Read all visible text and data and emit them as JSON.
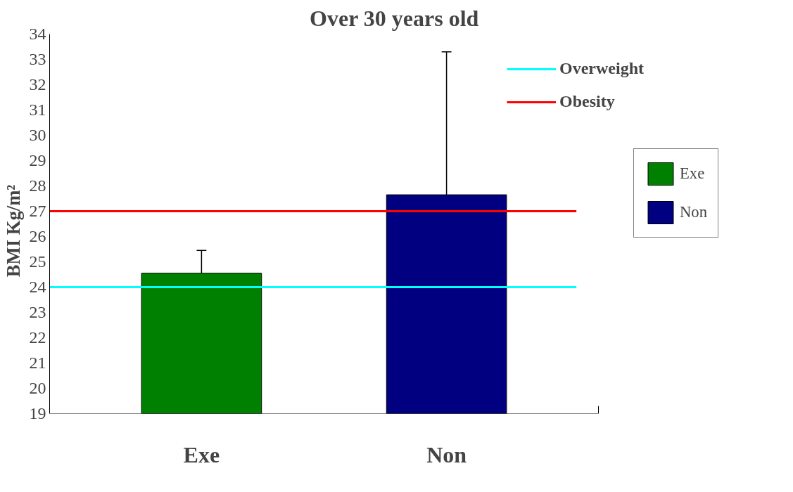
{
  "chart_data": {
    "type": "bar",
    "title": "Over 30 years old",
    "ylabel": "BMI    Kg/m²",
    "categories": [
      "Exe",
      "Non"
    ],
    "series": [
      {
        "name": "Exe",
        "color": "#008000",
        "values": [
          24.55,
          null
        ],
        "errors": [
          [
            24.55,
            25.45
          ],
          null
        ]
      },
      {
        "name": "Non",
        "color": "#000080",
        "values": [
          null,
          27.65
        ],
        "errors": [
          null,
          [
            27.65,
            33.3
          ]
        ]
      }
    ],
    "ylim": [
      19,
      34
    ],
    "yticks": [
      19,
      20,
      21,
      22,
      23,
      24,
      25,
      26,
      27,
      28,
      29,
      30,
      31,
      32,
      33,
      34
    ],
    "ref_lines": [
      {
        "axis": "y",
        "value": 24,
        "label": "Overweight",
        "color": "#00ffff"
      },
      {
        "axis": "y",
        "value": 27,
        "label": "Obesity",
        "color": "#ff0000"
      }
    ],
    "grid": false,
    "legend": "right"
  }
}
